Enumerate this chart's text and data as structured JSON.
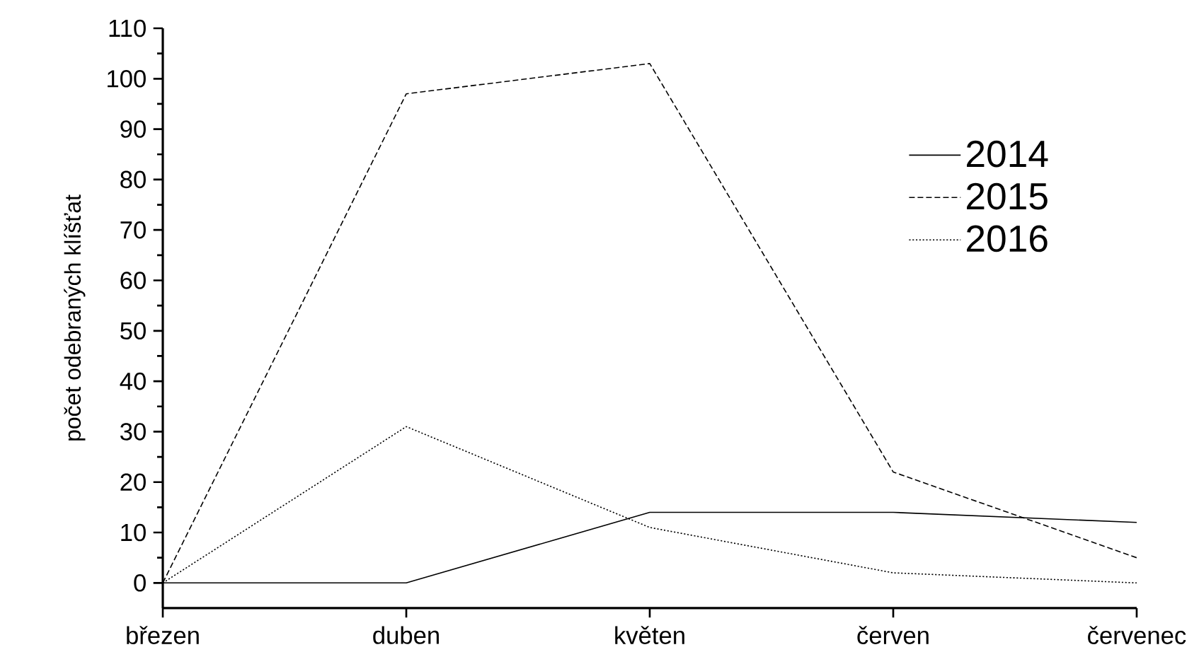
{
  "chart_data": {
    "type": "line",
    "ylabel": "počet odebraných klíšťat",
    "categories": [
      "březen",
      "duben",
      "květen",
      "červen",
      "červenec"
    ],
    "series": [
      {
        "name": "2014",
        "color": "#000000",
        "line_style": "solid",
        "values": [
          0,
          0,
          14,
          14,
          12
        ]
      },
      {
        "name": "2015",
        "color": "#000000",
        "line_style": "dashed",
        "values": [
          0,
          97,
          103,
          22,
          5
        ]
      },
      {
        "name": "2016",
        "color": "#000000",
        "line_style": "dotted",
        "values": [
          0,
          31,
          11,
          2,
          0
        ]
      }
    ],
    "ylim": [
      -5,
      110
    ],
    "yticks": [
      0,
      10,
      20,
      30,
      40,
      50,
      60,
      70,
      80,
      90,
      100,
      110
    ],
    "grid": false,
    "legend": "right",
    "marker": "none"
  }
}
